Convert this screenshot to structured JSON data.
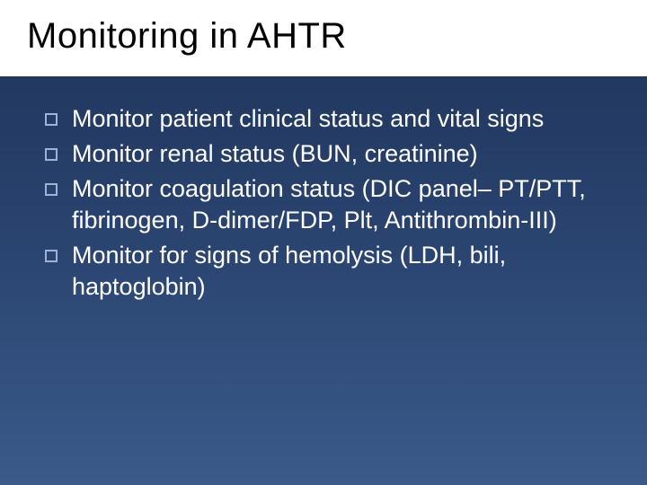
{
  "slide": {
    "title": "Monitoring in AHTR",
    "title_fontsize": 40,
    "title_color": "#000000",
    "title_bg": "#ffffff",
    "background_gradient": [
      "#1e3358",
      "#2a4470",
      "#3a5a8a"
    ],
    "bullets": [
      "Monitor patient clinical status and vital signs",
      "Monitor renal status (BUN, creatinine)",
      "Monitor coagulation status (DIC panel– PT/PTT, fibrinogen, D-dimer/FDP, Plt, Antithrombin-III)",
      "Monitor for signs of hemolysis (LDH, bili, haptoglobin)"
    ],
    "bullet_fontsize": 27,
    "bullet_color": "#ffffff",
    "bullet_marker_border": "#9db4d8",
    "bullet_marker_size": 14
  }
}
